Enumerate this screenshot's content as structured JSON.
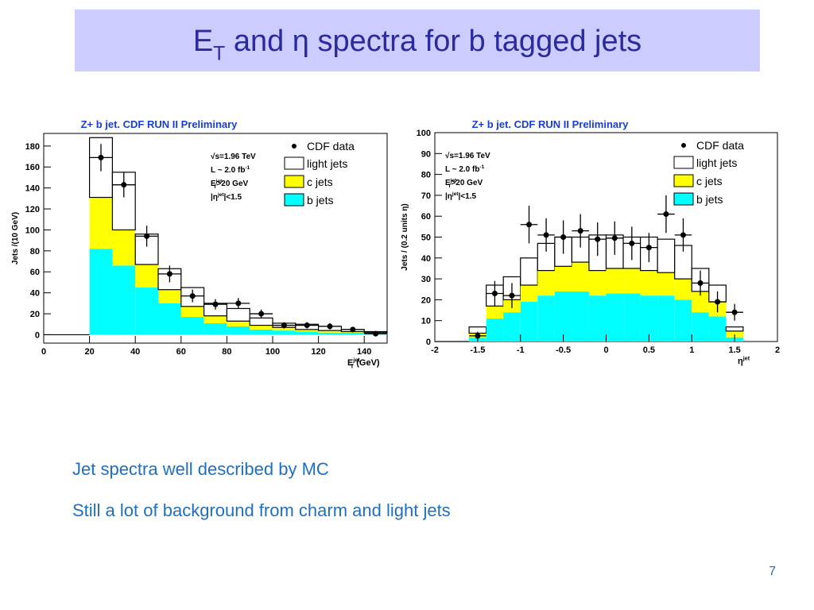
{
  "slide": {
    "title": {
      "text": "E",
      "sub": "T",
      "after": " and η spectra for b tagged jets"
    },
    "bullets": [
      "Jet spectra well described by MC",
      "Still a lot of background from charm and light jets"
    ],
    "page_number": "7"
  },
  "chart_data": [
    {
      "type": "stacked_histogram",
      "title": "Z+ b jet. CDF RUN II Preliminary",
      "xlabel": {
        "text": "E",
        "sup": "jet",
        "sub": "T",
        "after": " (GeV)"
      },
      "ylabel": "Jets /(10 GeV)",
      "bins": [
        20,
        30,
        40,
        50,
        60,
        70,
        80,
        90,
        100,
        110,
        120,
        130,
        140,
        150
      ],
      "series": [
        {
          "name": "b jets",
          "color": "#00ffff",
          "values": [
            82,
            66,
            45,
            30,
            17,
            11,
            8,
            5,
            4,
            3,
            2,
            2,
            1
          ]
        },
        {
          "name": "c jets",
          "color": "#ffff00",
          "values": [
            49,
            34,
            22,
            13,
            10,
            7,
            5,
            4,
            3,
            2,
            2,
            1,
            1
          ]
        },
        {
          "name": "light jets",
          "color": "#ffffff",
          "values": [
            57,
            55,
            29,
            20,
            18,
            12,
            12,
            7,
            4,
            5,
            4,
            2,
            1
          ]
        }
      ],
      "data": {
        "name": "CDF data",
        "values": [
          169,
          143,
          94,
          58,
          37,
          29,
          30,
          20,
          9,
          9,
          8,
          5,
          1
        ],
        "yerr": [
          13,
          12,
          10,
          8,
          6,
          5,
          5,
          4,
          3,
          3,
          3,
          2,
          1
        ]
      },
      "annotations": [
        {
          "text": "√s=1.96 TeV"
        },
        {
          "text": "L ~ 2.0 fb",
          "sup": "-1"
        },
        {
          "text": "E",
          "sup": "jet",
          "sub": "T",
          "after": ">20 GeV"
        },
        {
          "text": "|η",
          "sup": "jet",
          "after": "|<1.5"
        }
      ],
      "xlim": [
        0,
        150
      ],
      "ylim": [
        -8,
        192
      ],
      "xticks": [
        0,
        20,
        40,
        60,
        80,
        100,
        120,
        140
      ],
      "yticks": [
        0,
        20,
        40,
        60,
        80,
        100,
        120,
        140,
        160,
        180
      ]
    },
    {
      "type": "stacked_histogram",
      "title": "Z+ b jet. CDF RUN II Preliminary",
      "xlabel": {
        "text": "η",
        "sup": "jet"
      },
      "ylabel": "Jets / (0.2 units η)",
      "bins": [
        -1.6,
        -1.4,
        -1.2,
        -1,
        -0.8,
        -0.6,
        -0.4,
        -0.2,
        0,
        0.2,
        0.4,
        0.6,
        0.8,
        1,
        1.2,
        1.4,
        1.6
      ],
      "series": [
        {
          "name": "b jets",
          "color": "#00ffff",
          "values": [
            2,
            11,
            14,
            19,
            22,
            24,
            24,
            22,
            23,
            23,
            22,
            22,
            20,
            14,
            12,
            2
          ]
        },
        {
          "name": "c jets",
          "color": "#ffff00",
          "values": [
            2,
            6,
            6,
            8,
            12,
            12,
            14,
            12,
            12,
            12,
            12,
            11,
            10,
            10,
            7,
            3
          ]
        },
        {
          "name": "light jets",
          "color": "#ffffff",
          "values": [
            3,
            10,
            11,
            13,
            13,
            14,
            12,
            17,
            16,
            15,
            16,
            16,
            16,
            11,
            8,
            2
          ]
        }
      ],
      "data": {
        "name": "CDF data",
        "values": [
          2.7,
          23,
          22,
          56,
          51,
          50,
          53,
          49,
          49.5,
          47,
          45,
          61,
          51,
          28,
          19,
          14
        ],
        "yerr": [
          2,
          6,
          6,
          9,
          8,
          8,
          8,
          8,
          8,
          8,
          7,
          9,
          8,
          6,
          5,
          4
        ]
      },
      "annotations": [
        {
          "text": "√s=1.96 TeV"
        },
        {
          "text": "L ~ 2.0 fb",
          "sup": "-1"
        },
        {
          "text": "E",
          "sup": "jet",
          "sub": "T",
          "after": ">20 GeV"
        },
        {
          "text": "|η",
          "sup": "jet",
          "after": "|<1.5"
        }
      ],
      "xlim": [
        -2,
        2
      ],
      "ylim": [
        0,
        100
      ],
      "xticks": [
        -2,
        -1.5,
        -1,
        -0.5,
        0,
        0.5,
        1,
        1.5,
        2
      ],
      "yticks": [
        0,
        10,
        20,
        30,
        40,
        50,
        60,
        70,
        80,
        90,
        100
      ]
    }
  ]
}
